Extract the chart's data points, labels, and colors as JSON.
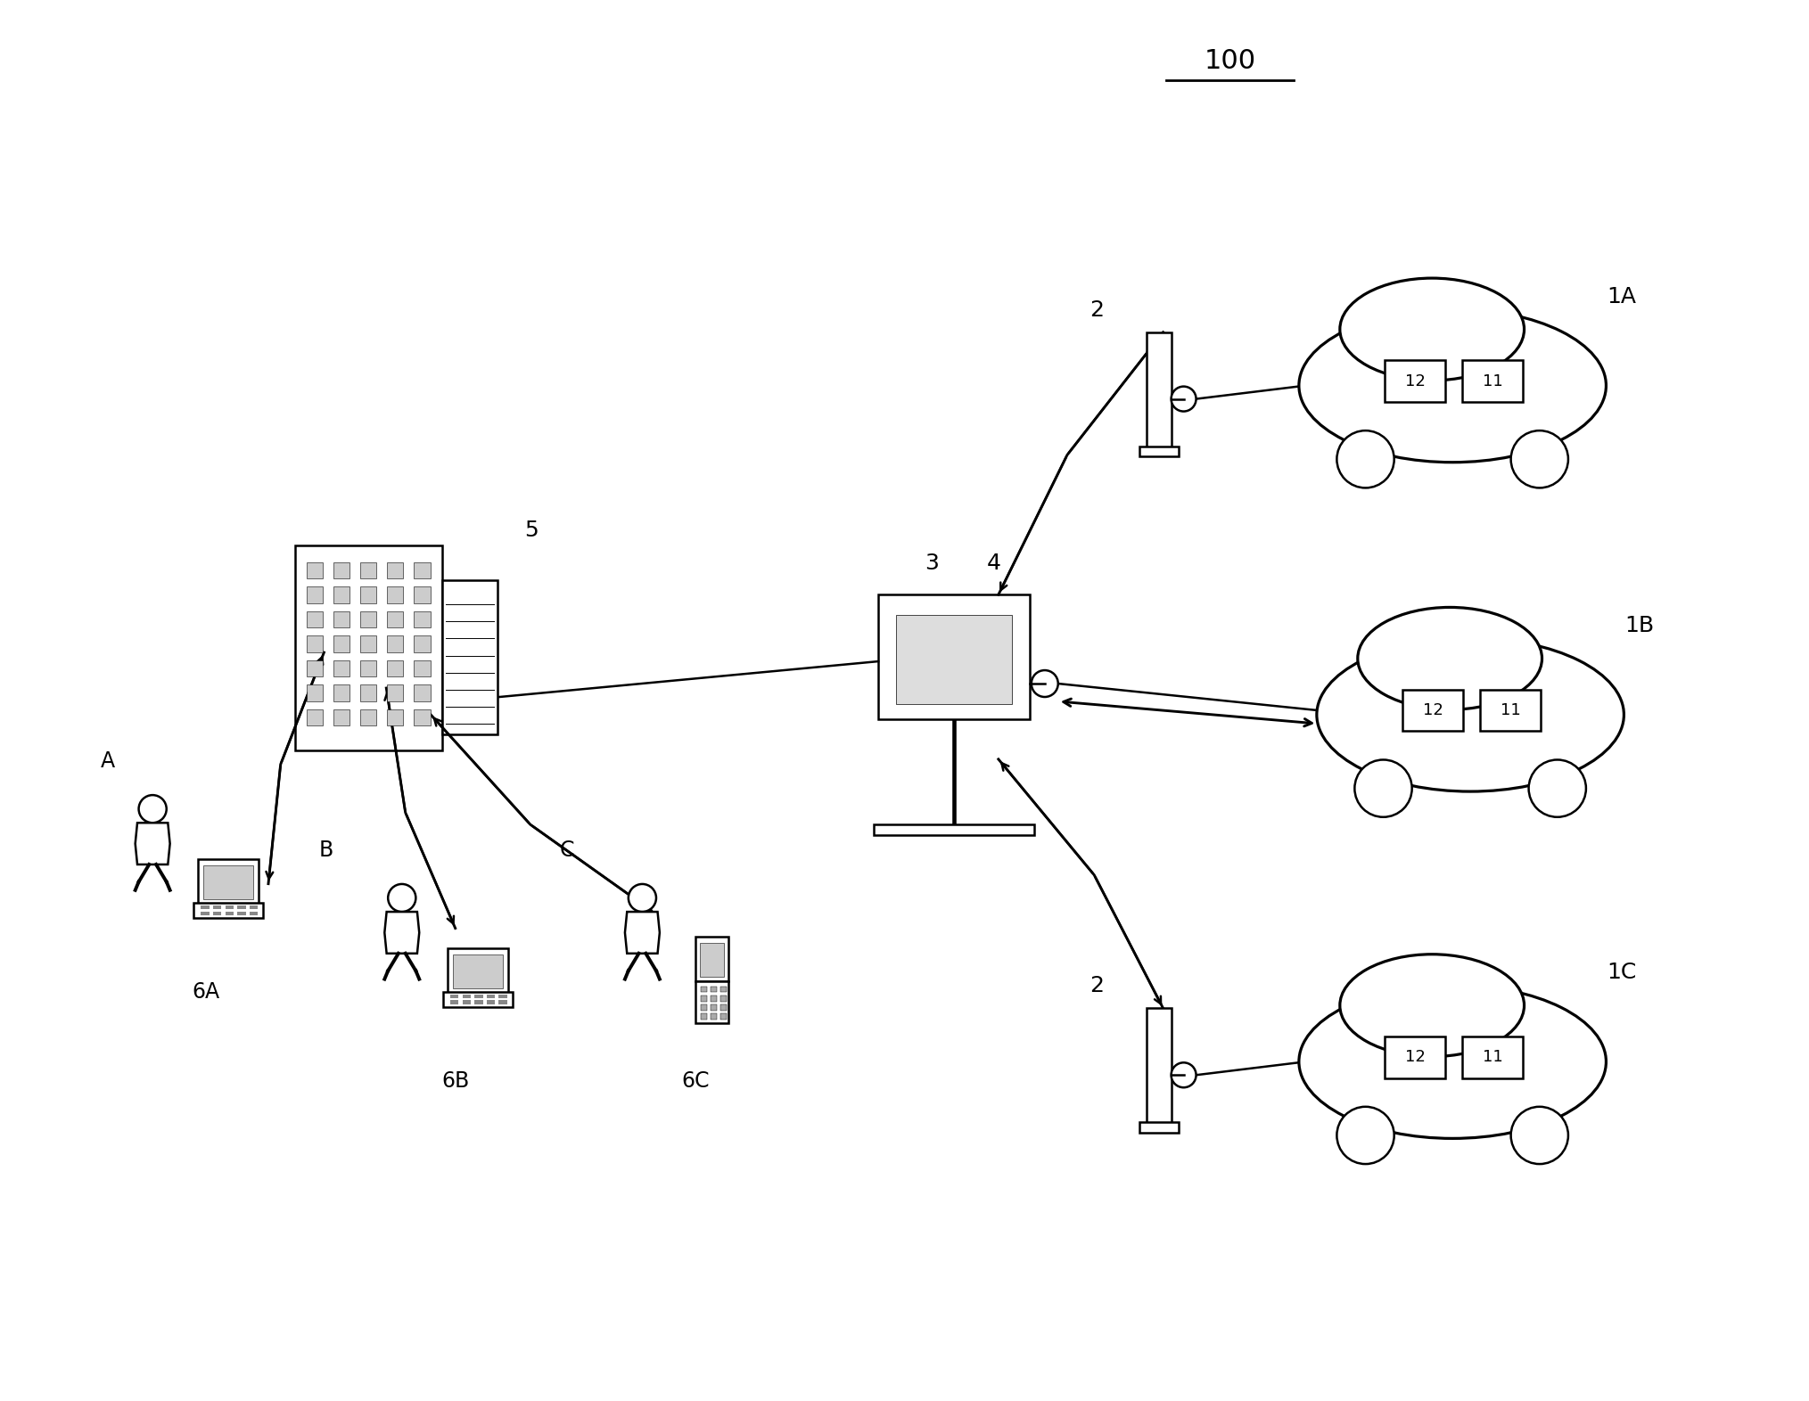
{
  "title": "100",
  "bg_color": "#ffffff",
  "line_color": "#000000",
  "fig_width": 20.29,
  "fig_height": 15.72,
  "server_label": "5",
  "station_label_3": "3",
  "station_label_4": "4",
  "car_labels": [
    "1A",
    "1B",
    "1C"
  ],
  "charger_label": "2",
  "module_labels": [
    "12",
    "11"
  ],
  "user_labels": [
    "A",
    "B",
    "C"
  ],
  "device_labels": [
    "6A",
    "6B",
    "6C"
  ]
}
